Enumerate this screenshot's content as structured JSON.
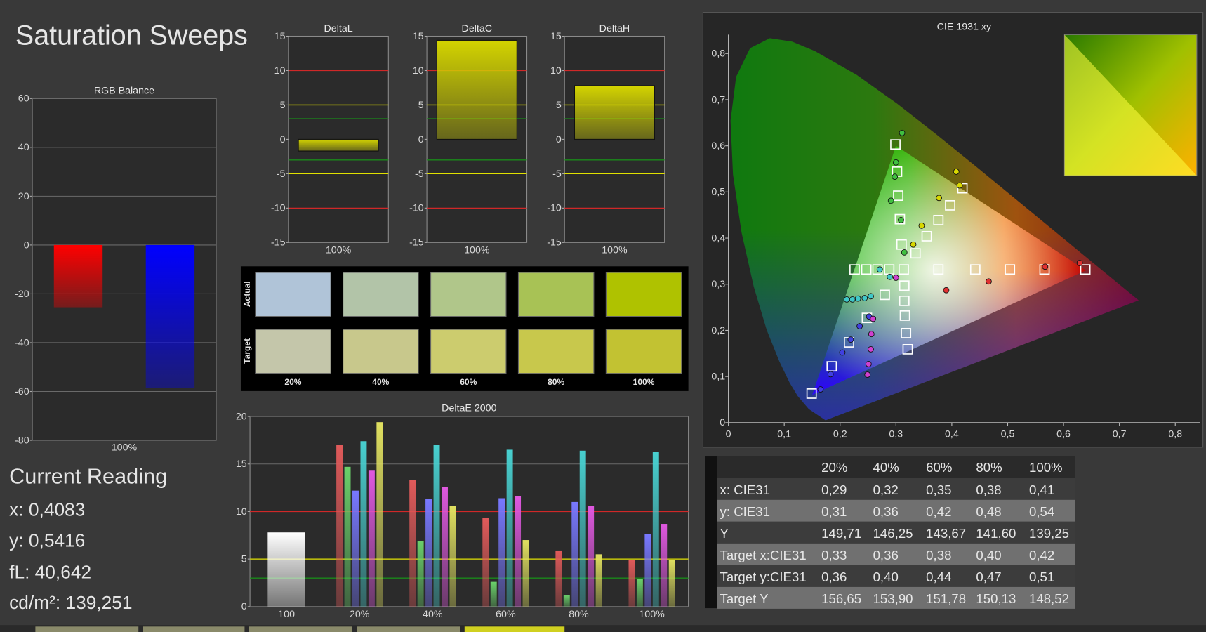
{
  "title": "Saturation Sweeps",
  "current_reading": {
    "title": "Current Reading",
    "lines": [
      "x: 0,4083",
      "y: 0,5416",
      "fL: 40,642",
      "cd/m²: 139,251"
    ]
  },
  "swatches": {
    "row_labels": [
      "Actual",
      "Target"
    ],
    "columns": [
      "20%",
      "40%",
      "60%",
      "80%",
      "100%"
    ],
    "actual": [
      "#b0c4d8",
      "#b2c4a8",
      "#b0c68a",
      "#a8c255",
      "#afc200"
    ],
    "target": [
      "#c4c6aa",
      "#c8c88c",
      "#cccc6e",
      "#c8c84c",
      "#c2c232"
    ]
  },
  "table": {
    "columns": [
      "20%",
      "40%",
      "60%",
      "80%",
      "100%"
    ],
    "rows": [
      [
        "x: CIE31",
        "0,29",
        "0,32",
        "0,35",
        "0,38",
        "0,41"
      ],
      [
        "y: CIE31",
        "0,31",
        "0,36",
        "0,42",
        "0,48",
        "0,54"
      ],
      [
        "Y",
        "149,71",
        "146,25",
        "143,67",
        "141,60",
        "139,25"
      ],
      [
        "Target x:CIE31",
        "0,33",
        "0,36",
        "0,38",
        "0,40",
        "0,42"
      ],
      [
        "Target y:CIE31",
        "0,36",
        "0,40",
        "0,44",
        "0,47",
        "0,51"
      ],
      [
        "Target Y",
        "156,65",
        "153,90",
        "151,78",
        "150,13",
        "148,52"
      ]
    ]
  },
  "chart_data": [
    {
      "type": "bar",
      "title": "RGB Balance",
      "categories": [
        "100%"
      ],
      "series": [
        {
          "color": "#ff0000",
          "values": [
            -25.5
          ]
        },
        {
          "color": "#0000ff",
          "values": [
            -58.5
          ]
        }
      ],
      "ylim": [
        -80,
        60
      ],
      "yticks": [
        60,
        40,
        20,
        0,
        -20,
        -40,
        -60,
        -80
      ],
      "grid": true
    },
    {
      "type": "bar",
      "title": "DeltaL",
      "categories": [
        "100%"
      ],
      "values": [
        -1.7
      ],
      "color": "#d4d400",
      "ylim": [
        -15,
        15
      ],
      "yticks": [
        -15,
        -10,
        -5,
        0,
        5,
        10,
        15
      ],
      "grid": false,
      "reference_lines": [
        {
          "value": 10,
          "color": "#d02828"
        },
        {
          "value": -10,
          "color": "#d02828"
        },
        {
          "value": 5,
          "color": "#e0e000"
        },
        {
          "value": -5,
          "color": "#e0e000"
        },
        {
          "value": 3,
          "color": "#1a8a1a"
        },
        {
          "value": -3,
          "color": "#1a8a1a"
        }
      ]
    },
    {
      "type": "bar",
      "title": "DeltaC",
      "categories": [
        "100%"
      ],
      "values": [
        14.4
      ],
      "color": "#d4d400",
      "ylim": [
        -15,
        15
      ],
      "yticks": [
        -15,
        -10,
        -5,
        0,
        5,
        10,
        15
      ],
      "grid": false,
      "reference_lines": [
        {
          "value": 10,
          "color": "#d02828"
        },
        {
          "value": -10,
          "color": "#d02828"
        },
        {
          "value": 5,
          "color": "#e0e000"
        },
        {
          "value": -5,
          "color": "#e0e000"
        },
        {
          "value": 3,
          "color": "#1a8a1a"
        },
        {
          "value": -3,
          "color": "#1a8a1a"
        }
      ]
    },
    {
      "type": "bar",
      "title": "DeltaH",
      "categories": [
        "100%"
      ],
      "values": [
        7.8
      ],
      "color": "#d4d400",
      "ylim": [
        -15,
        15
      ],
      "yticks": [
        -15,
        -10,
        -5,
        0,
        5,
        10,
        15
      ],
      "grid": false,
      "reference_lines": [
        {
          "value": 10,
          "color": "#d02828"
        },
        {
          "value": -10,
          "color": "#d02828"
        },
        {
          "value": 5,
          "color": "#e0e000"
        },
        {
          "value": -5,
          "color": "#e0e000"
        },
        {
          "value": 3,
          "color": "#1a8a1a"
        },
        {
          "value": -3,
          "color": "#1a8a1a"
        }
      ]
    },
    {
      "type": "bar",
      "title": "DeltaE 2000",
      "categories": [
        "100",
        "20%",
        "40%",
        "60%",
        "80%",
        "100%"
      ],
      "series": [
        {
          "color": "#ffffff",
          "values": [
            7.8,
            null,
            null,
            null,
            null,
            null
          ]
        },
        {
          "color": "#e05a5a",
          "values": [
            null,
            17.0,
            13.3,
            9.3,
            5.9,
            4.9
          ]
        },
        {
          "color": "#6ad06a",
          "values": [
            null,
            14.7,
            6.9,
            2.6,
            1.2,
            2.9
          ]
        },
        {
          "color": "#7878ff",
          "values": [
            null,
            12.2,
            11.3,
            11.4,
            11.0,
            7.6
          ]
        },
        {
          "color": "#48d0d0",
          "values": [
            null,
            17.4,
            17.0,
            16.5,
            16.4,
            16.3
          ]
        },
        {
          "color": "#e058e0",
          "values": [
            null,
            14.3,
            12.6,
            11.6,
            10.6,
            8.7
          ]
        },
        {
          "color": "#e0e060",
          "values": [
            null,
            19.4,
            10.6,
            7.0,
            5.5,
            4.9
          ]
        }
      ],
      "ylim": [
        0,
        20
      ],
      "yticks": [
        0,
        5,
        10,
        15,
        20
      ],
      "grid": true,
      "reference_lines": [
        {
          "value": 10,
          "color": "#d02828"
        },
        {
          "value": 5,
          "color": "#e0e000"
        },
        {
          "value": 3,
          "color": "#1a8a1a"
        }
      ]
    },
    {
      "type": "scatter",
      "title": "CIE 1931 xy",
      "xlim": [
        0,
        0.844
      ],
      "ylim": [
        0,
        0.841
      ],
      "grid": false,
      "xticks": [
        0,
        {
          "value": 0.1,
          "label": "0,1"
        },
        {
          "value": 0.2,
          "label": "0,2"
        },
        {
          "value": 0.3,
          "label": "0,3"
        },
        {
          "value": 0.4,
          "label": "0,4"
        },
        {
          "value": 0.5,
          "label": "0,5"
        },
        {
          "value": 0.6,
          "label": "0,6"
        },
        {
          "value": 0.7,
          "label": "0,7"
        },
        {
          "value": 0.8,
          "label": "0,8"
        }
      ],
      "yticks": [
        0,
        {
          "value": 0.1,
          "label": "0,1"
        },
        {
          "value": 0.2,
          "label": "0,2"
        },
        {
          "value": 0.3,
          "label": "0,3"
        },
        {
          "value": 0.4,
          "label": "0,4"
        },
        {
          "value": 0.5,
          "label": "0,5"
        },
        {
          "value": 0.6,
          "label": "0,6"
        },
        {
          "value": 0.7,
          "label": "0,7"
        },
        {
          "value": 0.8,
          "label": "0,8"
        }
      ],
      "gamut": {
        "x": [
          0.64,
          0.3,
          0.15
        ],
        "y": [
          0.33,
          0.6,
          0.06
        ]
      },
      "series": [
        {
          "marker": "square",
          "color": "#ffffff",
          "x": [
            0.299,
            0.302,
            0.304,
            0.307,
            0.31,
            0.419,
            0.397,
            0.376,
            0.355,
            0.335,
            0.376,
            0.442,
            0.504,
            0.566,
            0.639,
            0.226,
            0.247,
            0.267,
            0.288,
            0.149,
            0.185,
            0.216,
            0.248,
            0.28,
            0.321,
            0.318,
            0.316,
            0.315,
            0.315,
            0.314
          ],
          "y": [
            0.603,
            0.544,
            0.492,
            0.441,
            0.386,
            0.508,
            0.471,
            0.439,
            0.404,
            0.367,
            0.332,
            0.332,
            0.332,
            0.332,
            0.332,
            0.332,
            0.332,
            0.332,
            0.332,
            0.063,
            0.122,
            0.174,
            0.227,
            0.277,
            0.159,
            0.194,
            0.232,
            0.264,
            0.297,
            0.332
          ]
        },
        {
          "marker": "circle",
          "color": "#40c040",
          "x": [
            0.311,
            0.3,
            0.298,
            0.291,
            0.309,
            0.315
          ],
          "y": [
            0.628,
            0.564,
            0.533,
            0.481,
            0.439,
            0.369
          ]
        },
        {
          "marker": "circle",
          "color": "#d8d800",
          "x": [
            0.408,
            0.414,
            0.377,
            0.346,
            0.331
          ],
          "y": [
            0.544,
            0.514,
            0.487,
            0.427,
            0.386
          ]
        },
        {
          "marker": "circle",
          "color": "#e03030",
          "x": [
            0.39,
            0.466,
            0.629,
            0.567
          ],
          "y": [
            0.287,
            0.306,
            0.346,
            0.338
          ]
        },
        {
          "marker": "circle",
          "color": "#40c8c8",
          "x": [
            0.212,
            0.222,
            0.232,
            0.244,
            0.255,
            0.271,
            0.289
          ],
          "y": [
            0.267,
            0.267,
            0.269,
            0.27,
            0.274,
            0.332,
            0.316
          ]
        },
        {
          "marker": "circle",
          "color": "#4040e0",
          "x": [
            0.165,
            0.183,
            0.204,
            0.219,
            0.235,
            0.252
          ],
          "y": [
            0.072,
            0.105,
            0.152,
            0.18,
            0.209,
            0.23
          ]
        },
        {
          "marker": "circle",
          "color": "#d040d0",
          "x": [
            0.249,
            0.251,
            0.255,
            0.256,
            0.259,
            0.3
          ],
          "y": [
            0.104,
            0.127,
            0.159,
            0.192,
            0.225,
            0.314
          ]
        }
      ]
    }
  ]
}
